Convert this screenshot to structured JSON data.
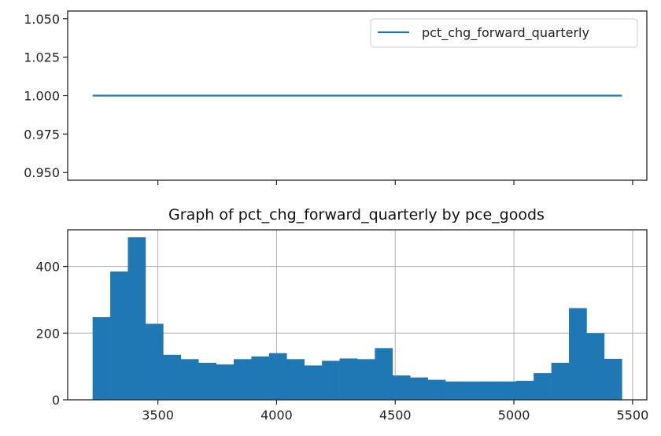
{
  "chart_data": [
    {
      "type": "line",
      "series": [
        {
          "name": "pct_chg_forward_quarterly",
          "x": [
            3225,
            5455
          ],
          "values": [
            1.0,
            1.0
          ],
          "color": "#1f77b4"
        }
      ],
      "xlim": [
        3120,
        5560
      ],
      "ylim": [
        0.945,
        1.055
      ],
      "yticks": [
        "0.950",
        "0.975",
        "1.000",
        "1.025",
        "1.050"
      ],
      "ytick_values": [
        0.95,
        0.975,
        1.0,
        1.025,
        1.05
      ],
      "xtick_values": [
        3500,
        4000,
        4500,
        5000,
        5500
      ],
      "grid": false,
      "legend": "top-right",
      "shared_x_with_next": true
    },
    {
      "type": "bar",
      "title": "Graph of pct_chg_forward_quarterly by pce_goods",
      "bin_start": 3225,
      "bin_width": 74.33,
      "values": [
        248,
        385,
        488,
        228,
        135,
        122,
        111,
        106,
        122,
        130,
        140,
        122,
        103,
        117,
        124,
        122,
        155,
        73,
        67,
        60,
        55,
        55,
        55,
        55,
        57,
        80,
        111,
        275,
        200,
        123
      ],
      "color": "#1f77b4",
      "xlim": [
        3120,
        5560
      ],
      "ylim": [
        0,
        510
      ],
      "xticks": [
        "3500",
        "4000",
        "4500",
        "5000",
        "5500"
      ],
      "xtick_values": [
        3500,
        4000,
        4500,
        5000,
        5500
      ],
      "yticks": [
        "0",
        "200",
        "400"
      ],
      "ytick_values": [
        0,
        200,
        400
      ],
      "grid": true
    }
  ]
}
